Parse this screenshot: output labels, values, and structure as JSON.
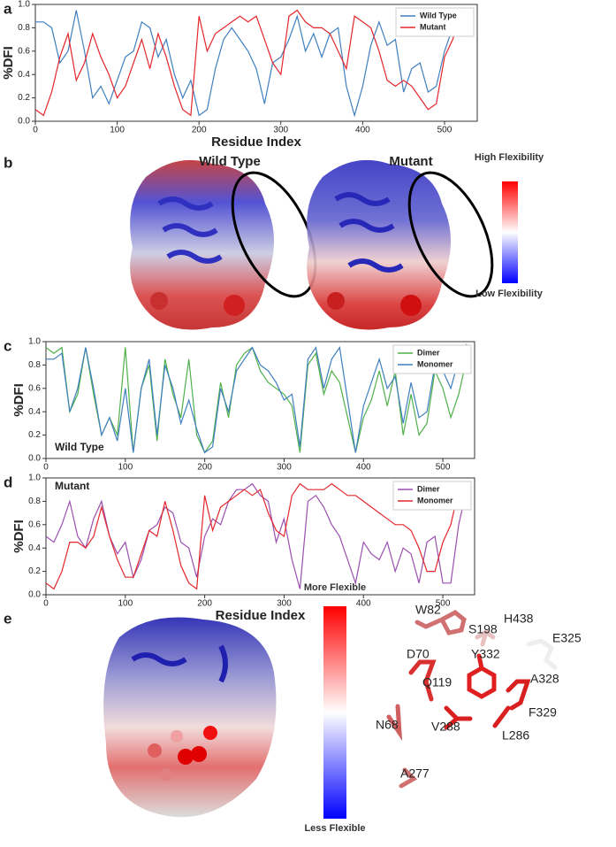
{
  "chart_data": [
    {
      "type": "line",
      "panel": "a",
      "ylabel": "%DFI",
      "xlabel": "Residue Index",
      "xlim": [
        0,
        540
      ],
      "xticks": [
        0,
        100,
        200,
        300,
        400,
        500
      ],
      "ylim": [
        0,
        1
      ],
      "yticks": [
        {
          "value": 0,
          "label": "0.0"
        },
        {
          "value": 0.2,
          "label": "0.2"
        },
        {
          "value": 0.4,
          "label": "0.4"
        },
        {
          "value": 0.6,
          "label": "0.6"
        },
        {
          "value": 0.8,
          "label": "0.8"
        },
        {
          "value": 1,
          "label": "1.0"
        }
      ],
      "legend": "upper right",
      "x": [
        0,
        10,
        20,
        30,
        40,
        50,
        60,
        70,
        80,
        90,
        100,
        110,
        120,
        130,
        140,
        150,
        160,
        170,
        180,
        190,
        200,
        210,
        220,
        230,
        240,
        250,
        260,
        270,
        280,
        290,
        300,
        310,
        320,
        330,
        340,
        350,
        360,
        370,
        380,
        390,
        400,
        410,
        420,
        430,
        440,
        450,
        460,
        470,
        480,
        490,
        500,
        510,
        520,
        530
      ],
      "series": [
        {
          "name": "Wild Type",
          "color": "#3f7fbf",
          "values": [
            0.85,
            0.85,
            0.8,
            0.5,
            0.6,
            0.95,
            0.6,
            0.2,
            0.3,
            0.15,
            0.35,
            0.55,
            0.6,
            0.85,
            0.8,
            0.55,
            0.7,
            0.4,
            0.2,
            0.35,
            0.05,
            0.1,
            0.45,
            0.7,
            0.8,
            0.7,
            0.6,
            0.45,
            0.15,
            0.5,
            0.55,
            0.7,
            0.9,
            0.6,
            0.75,
            0.55,
            0.75,
            0.8,
            0.3,
            0.05,
            0.3,
            0.65,
            0.85,
            0.65,
            0.7,
            0.25,
            0.45,
            0.5,
            0.25,
            0.3,
            0.6,
            0.8,
            0.95,
            0.95
          ]
        },
        {
          "name": "Mutant",
          "color": "#e3262b",
          "values": [
            0.1,
            0.05,
            0.25,
            0.55,
            0.75,
            0.35,
            0.5,
            0.75,
            0.55,
            0.4,
            0.2,
            0.3,
            0.5,
            0.7,
            0.45,
            0.75,
            0.55,
            0.3,
            0.1,
            0.05,
            0.9,
            0.6,
            0.75,
            0.8,
            0.85,
            0.9,
            0.85,
            0.9,
            0.7,
            0.5,
            0.4,
            0.9,
            0.95,
            0.85,
            0.8,
            0.8,
            0.75,
            0.6,
            0.45,
            0.9,
            0.85,
            0.8,
            0.6,
            0.35,
            0.3,
            0.35,
            0.3,
            0.2,
            0.1,
            0.15,
            0.55,
            0.7,
            0.9,
            0.97
          ]
        }
      ]
    },
    {
      "type": "line",
      "panel": "c",
      "ylabel": "%DFI",
      "annotation": "Wild Type",
      "xlim": [
        0,
        540
      ],
      "xticks": [
        0,
        100,
        200,
        300,
        400,
        500
      ],
      "ylim": [
        0,
        1
      ],
      "yticks": [
        {
          "value": 0,
          "label": "0.0"
        },
        {
          "value": 0.2,
          "label": "0.2"
        },
        {
          "value": 0.4,
          "label": "0.4"
        },
        {
          "value": 0.6,
          "label": "0.6"
        },
        {
          "value": 0.8,
          "label": "0.8"
        },
        {
          "value": 1,
          "label": "1.0"
        }
      ],
      "legend": "upper right",
      "x": [
        0,
        10,
        20,
        30,
        40,
        50,
        60,
        70,
        80,
        90,
        100,
        110,
        120,
        130,
        140,
        150,
        160,
        170,
        180,
        190,
        200,
        210,
        220,
        230,
        240,
        250,
        260,
        270,
        280,
        290,
        300,
        310,
        320,
        330,
        340,
        350,
        360,
        370,
        380,
        390,
        400,
        410,
        420,
        430,
        440,
        450,
        460,
        470,
        480,
        490,
        500,
        510,
        520,
        530
      ],
      "series": [
        {
          "name": "Dimer",
          "color": "#4fb04a",
          "values": [
            0.95,
            0.9,
            0.95,
            0.4,
            0.55,
            0.95,
            0.55,
            0.2,
            0.35,
            0.2,
            0.95,
            0.05,
            0.6,
            0.8,
            0.15,
            0.85,
            0.55,
            0.35,
            0.85,
            0.2,
            0.05,
            0.15,
            0.65,
            0.35,
            0.8,
            0.9,
            0.95,
            0.75,
            0.65,
            0.6,
            0.55,
            0.45,
            0.05,
            0.8,
            0.9,
            0.55,
            0.75,
            0.65,
            0.35,
            0.05,
            0.35,
            0.5,
            0.75,
            0.45,
            0.75,
            0.2,
            0.55,
            0.2,
            0.3,
            0.75,
            0.6,
            0.35,
            0.55,
            0.85
          ]
        },
        {
          "name": "Monomer",
          "color": "#3f7fbf",
          "values": [
            0.85,
            0.85,
            0.9,
            0.4,
            0.6,
            0.95,
            0.6,
            0.2,
            0.35,
            0.15,
            0.6,
            0.05,
            0.6,
            0.85,
            0.2,
            0.8,
            0.6,
            0.3,
            0.5,
            0.25,
            0.05,
            0.1,
            0.6,
            0.4,
            0.75,
            0.85,
            0.95,
            0.8,
            0.75,
            0.65,
            0.5,
            0.55,
            0.1,
            0.85,
            0.95,
            0.6,
            0.85,
            0.95,
            0.5,
            0.05,
            0.45,
            0.65,
            0.85,
            0.6,
            0.7,
            0.3,
            0.65,
            0.35,
            0.4,
            0.8,
            0.75,
            0.6,
            0.85,
            0.98
          ]
        }
      ]
    },
    {
      "type": "line",
      "panel": "d",
      "ylabel": "%DFI",
      "xlabel": "Residue Index",
      "annotation": "Mutant",
      "xlim": [
        0,
        540
      ],
      "xticks": [
        0,
        100,
        200,
        300,
        400,
        500
      ],
      "ylim": [
        0,
        1
      ],
      "yticks": [
        {
          "value": 0,
          "label": "0.0"
        },
        {
          "value": 0.2,
          "label": "0.2"
        },
        {
          "value": 0.4,
          "label": "0.4"
        },
        {
          "value": 0.6,
          "label": "0.6"
        },
        {
          "value": 0.8,
          "label": "0.8"
        },
        {
          "value": 1,
          "label": "1.0"
        }
      ],
      "legend": "upper right",
      "x": [
        0,
        10,
        20,
        30,
        40,
        50,
        60,
        70,
        80,
        90,
        100,
        110,
        120,
        130,
        140,
        150,
        160,
        170,
        180,
        190,
        200,
        210,
        220,
        230,
        240,
        250,
        260,
        270,
        280,
        290,
        300,
        310,
        320,
        330,
        340,
        350,
        360,
        370,
        380,
        390,
        400,
        410,
        420,
        430,
        440,
        450,
        460,
        470,
        480,
        490,
        500,
        510,
        520,
        530
      ],
      "series": [
        {
          "name": "Dimer",
          "color": "#9b4fb0",
          "values": [
            0.5,
            0.45,
            0.6,
            0.8,
            0.5,
            0.4,
            0.65,
            0.8,
            0.5,
            0.35,
            0.45,
            0.15,
            0.3,
            0.55,
            0.6,
            0.75,
            0.7,
            0.45,
            0.4,
            0.15,
            0.5,
            0.65,
            0.6,
            0.8,
            0.9,
            0.9,
            0.95,
            0.85,
            0.8,
            0.45,
            0.65,
            0.3,
            0.05,
            0.8,
            0.85,
            0.75,
            0.6,
            0.5,
            0.3,
            0.1,
            0.45,
            0.35,
            0.3,
            0.45,
            0.2,
            0.4,
            0.35,
            0.1,
            0.45,
            0.5,
            0.1,
            0.1,
            0.6,
            0.9
          ]
        },
        {
          "name": "Monomer",
          "color": "#e3262b",
          "values": [
            0.1,
            0.05,
            0.2,
            0.45,
            0.45,
            0.4,
            0.5,
            0.75,
            0.5,
            0.3,
            0.15,
            0.15,
            0.35,
            0.55,
            0.5,
            0.8,
            0.55,
            0.25,
            0.1,
            0.05,
            0.85,
            0.55,
            0.75,
            0.8,
            0.85,
            0.9,
            0.85,
            0.9,
            0.7,
            0.55,
            0.5,
            0.85,
            0.95,
            0.9,
            0.9,
            0.9,
            0.95,
            0.9,
            0.85,
            0.85,
            0.8,
            0.75,
            0.7,
            0.65,
            0.6,
            0.6,
            0.55,
            0.4,
            0.2,
            0.2,
            0.45,
            0.6,
            0.9,
            0.97
          ]
        }
      ]
    }
  ],
  "panels": {
    "b": {
      "panel": "b",
      "left_title": "Wild Type",
      "right_title": "Mutant",
      "scale_top": "High Flexibility",
      "scale_bottom": "Low Flexibility"
    },
    "e": {
      "panel": "e",
      "scale_top": "More Flexible",
      "scale_bottom": "Less Flexible",
      "residues": [
        "W82",
        "H438",
        "S198",
        "E325",
        "D70",
        "Y332",
        "A328",
        "Q119",
        "F329",
        "N68",
        "V288",
        "L286",
        "A277"
      ]
    }
  }
}
